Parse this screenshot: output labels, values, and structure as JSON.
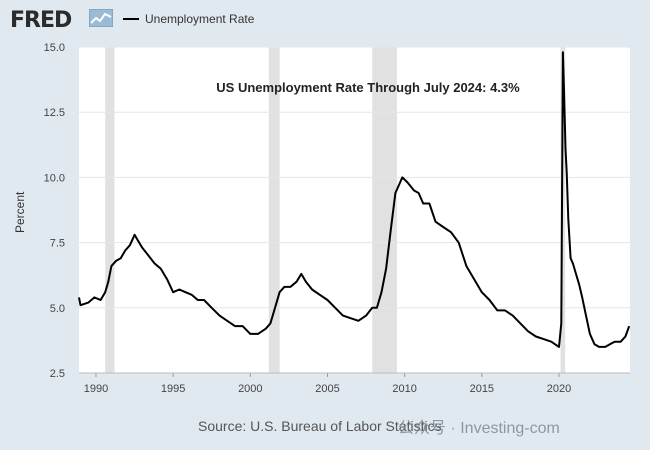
{
  "header": {
    "logo_text": "FRED",
    "legend_label": "Unemployment Rate"
  },
  "annotation": "US Unemployment Rate Through July 2024: 4.3%",
  "source": "Source: U.S. Bureau of Labor Statistics",
  "watermark": "公众号 · Investing-com",
  "colors": {
    "background": "#e1e9f0",
    "plot_bg": "#ffffff",
    "line": "#000000",
    "recession": "#e1e1e1",
    "grid": "#e6e6e6"
  },
  "chart_data": {
    "type": "line",
    "title": "",
    "xlabel": "",
    "ylabel": "Percent",
    "xlim": [
      1988.9,
      2024.6
    ],
    "ylim": [
      2.5,
      15.0
    ],
    "y_ticks": [
      "2.5",
      "5.0",
      "7.5",
      "10.0",
      "12.5",
      "15.0"
    ],
    "x_ticks": [
      "1990",
      "1995",
      "2000",
      "2005",
      "2010",
      "2015",
      "2020"
    ],
    "grid": true,
    "legend_position": "top-left",
    "recessions": [
      [
        1990.6,
        1991.2
      ],
      [
        2001.2,
        2001.9
      ],
      [
        2007.9,
        2009.5
      ],
      [
        2020.1,
        2020.4
      ]
    ],
    "series": [
      {
        "name": "Unemployment Rate",
        "x": [
          1988.9,
          1989.0,
          1989.5,
          1989.9,
          1990.3,
          1990.6,
          1990.8,
          1991.0,
          1991.3,
          1991.6,
          1991.9,
          1992.2,
          1992.5,
          1992.7,
          1993.0,
          1993.4,
          1993.8,
          1994.2,
          1994.6,
          1995.0,
          1995.4,
          1995.8,
          1996.2,
          1996.6,
          1997.0,
          1997.5,
          1998.0,
          1998.5,
          1999.0,
          1999.5,
          2000.0,
          2000.5,
          2001.0,
          2001.3,
          2001.6,
          2001.9,
          2002.2,
          2002.6,
          2003.0,
          2003.3,
          2003.6,
          2004.0,
          2004.5,
          2005.0,
          2005.5,
          2006.0,
          2006.5,
          2007.0,
          2007.5,
          2007.9,
          2008.2,
          2008.5,
          2008.8,
          2009.1,
          2009.4,
          2009.7,
          2009.85,
          2010.2,
          2010.6,
          2010.9,
          2011.2,
          2011.6,
          2012.0,
          2012.5,
          2013.0,
          2013.5,
          2014.0,
          2014.5,
          2015.0,
          2015.5,
          2016.0,
          2016.5,
          2017.0,
          2017.5,
          2018.0,
          2018.5,
          2019.0,
          2019.5,
          2020.0,
          2020.15,
          2020.25,
          2020.33,
          2020.42,
          2020.5,
          2020.6,
          2020.75,
          2020.9,
          2021.1,
          2021.3,
          2021.5,
          2021.75,
          2022.0,
          2022.3,
          2022.6,
          2023.0,
          2023.3,
          2023.6,
          2024.0,
          2024.3,
          2024.55
        ],
        "y": [
          5.4,
          5.1,
          5.2,
          5.4,
          5.3,
          5.6,
          6.0,
          6.6,
          6.8,
          6.9,
          7.2,
          7.4,
          7.8,
          7.6,
          7.3,
          7.0,
          6.7,
          6.5,
          6.1,
          5.6,
          5.7,
          5.6,
          5.5,
          5.3,
          5.3,
          5.0,
          4.7,
          4.5,
          4.3,
          4.3,
          4.0,
          4.0,
          4.2,
          4.4,
          5.0,
          5.6,
          5.8,
          5.8,
          6.0,
          6.3,
          6.0,
          5.7,
          5.5,
          5.3,
          5.0,
          4.7,
          4.6,
          4.5,
          4.7,
          5.0,
          5.0,
          5.6,
          6.5,
          8.0,
          9.4,
          9.8,
          10.0,
          9.8,
          9.5,
          9.4,
          9.0,
          9.0,
          8.3,
          8.1,
          7.9,
          7.5,
          6.6,
          6.1,
          5.6,
          5.3,
          4.9,
          4.9,
          4.7,
          4.4,
          4.1,
          3.9,
          3.8,
          3.7,
          3.5,
          4.4,
          14.8,
          13.2,
          11.1,
          10.2,
          8.4,
          6.9,
          6.7,
          6.3,
          5.9,
          5.4,
          4.7,
          4.0,
          3.6,
          3.5,
          3.5,
          3.6,
          3.7,
          3.7,
          3.9,
          4.3
        ]
      }
    ]
  }
}
